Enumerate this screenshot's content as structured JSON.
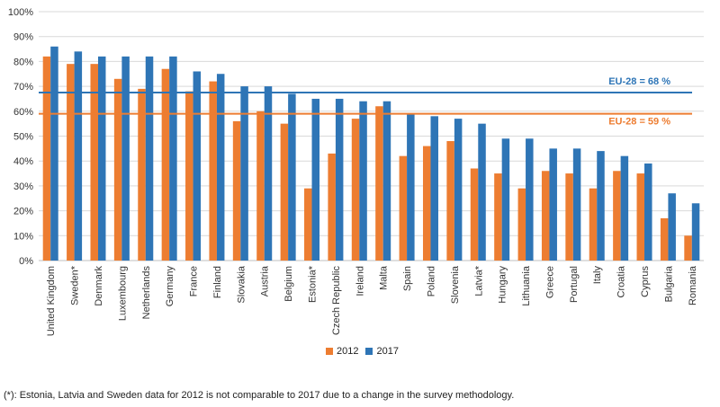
{
  "chart_data": {
    "type": "bar",
    "categories": [
      "United Kingdom",
      "Sweden*",
      "Denmark",
      "Luxembourg",
      "Netherlands",
      "Germany",
      "France",
      "Finland",
      "Slovakia",
      "Austria",
      "Belgium",
      "Estonia*",
      "Czech Republic",
      "Ireland",
      "Malta",
      "Spain",
      "Poland",
      "Slovenia",
      "Latvia*",
      "Hungary",
      "Lithuania",
      "Greece",
      "Portugal",
      "Italy",
      "Croatia",
      "Cyprus",
      "Bulgaria",
      "Romania"
    ],
    "series": [
      {
        "name": "2012",
        "color": "#ED7D31",
        "values": [
          82,
          79,
          79,
          73,
          69,
          77,
          68,
          72,
          56,
          60,
          55,
          29,
          43,
          57,
          62,
          42,
          46,
          48,
          37,
          35,
          29,
          36,
          35,
          29,
          36,
          35,
          17,
          10
        ]
      },
      {
        "name": "2017",
        "color": "#2E75B6",
        "values": [
          86,
          84,
          82,
          82,
          82,
          82,
          76,
          75,
          70,
          70,
          67,
          65,
          65,
          64,
          64,
          59,
          58,
          57,
          55,
          49,
          49,
          45,
          45,
          44,
          42,
          39,
          27,
          23
        ]
      }
    ],
    "reference_lines": [
      {
        "label": "EU-28 = 68 %",
        "value": 67.5,
        "color": "#2E75B6"
      },
      {
        "label": "EU-28 = 59 %",
        "value": 59,
        "color": "#ED7D31"
      }
    ],
    "yticks": [
      "0%",
      "10%",
      "20%",
      "30%",
      "40%",
      "50%",
      "60%",
      "70%",
      "80%",
      "90%",
      "100%"
    ],
    "ylim": [
      0,
      100
    ],
    "grid": true,
    "legend_position": "bottom-center"
  },
  "footnote": "(*): Estonia, Latvia and Sweden data for 2012 is not comparable to 2017 due to a change in the survey methodology."
}
